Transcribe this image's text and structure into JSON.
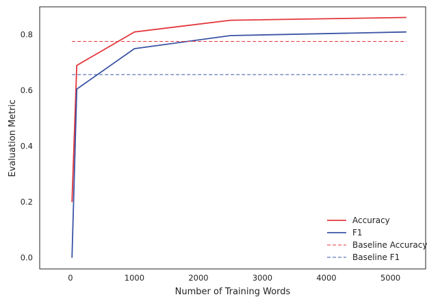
{
  "chart_data": {
    "type": "line",
    "title": "",
    "xlabel": "Number of Training Words",
    "ylabel": "Evaluation Metric",
    "xlim": [
      -480,
      5550
    ],
    "ylim": [
      -0.04,
      0.9
    ],
    "xticks": [
      0,
      1000,
      2000,
      3000,
      4000,
      5000
    ],
    "yticks": [
      0.0,
      0.2,
      0.4,
      0.6,
      0.8
    ],
    "xtick_labels": [
      "0",
      "1000",
      "2000",
      "3000",
      "4000",
      "5000"
    ],
    "ytick_labels": [
      "0.0",
      "0.2",
      "0.4",
      "0.6",
      "0.8"
    ],
    "grid": false,
    "legend_position": "bottom-right",
    "series": [
      {
        "name": "Accuracy",
        "style": "solid",
        "color": "#e3343a",
        "x": [
          25,
          100,
          1000,
          2500,
          5250
        ],
        "y": [
          0.2,
          0.69,
          0.81,
          0.852,
          0.862
        ]
      },
      {
        "name": "F1",
        "style": "solid",
        "color": "#3a53a4",
        "x": [
          25,
          100,
          1000,
          2500,
          5250
        ],
        "y": [
          0.0,
          0.605,
          0.75,
          0.797,
          0.81
        ]
      },
      {
        "name": "Baseline Accuracy",
        "style": "dashed",
        "color": "#e3343a",
        "x": [
          25,
          5250
        ],
        "y": [
          0.776,
          0.776
        ]
      },
      {
        "name": "Baseline F1",
        "style": "dashed",
        "color": "#3a53a4",
        "x": [
          25,
          5250
        ],
        "y": [
          0.657,
          0.657
        ]
      }
    ]
  }
}
